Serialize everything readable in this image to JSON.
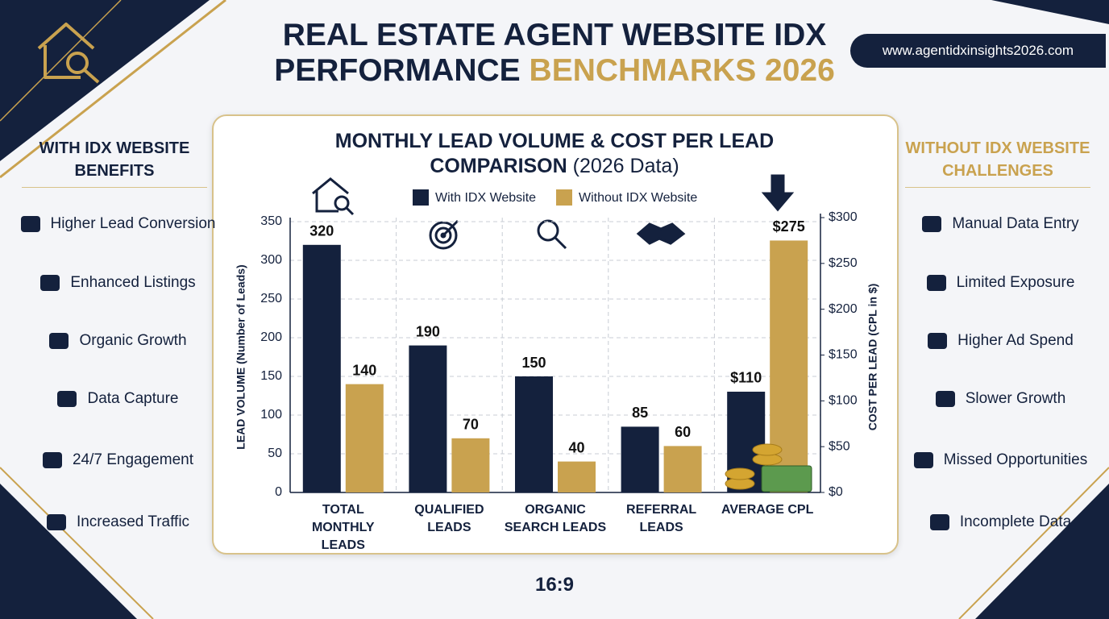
{
  "header": {
    "title_main": "REAL ESTATE AGENT WEBSITE IDX PERFORMANCE",
    "title_accent": "BENCHMARKS 2026",
    "website": "www.agentidxinsights2026.com"
  },
  "left_panel": {
    "title": "WITH IDX WEBSITE BENEFITS",
    "items": [
      "Higher Lead Conversion",
      "Enhanced Listings",
      "Organic Growth",
      "Data Capture",
      "24/7 Engagement",
      "Increased Traffic"
    ]
  },
  "right_panel": {
    "title": "WITHOUT IDX WEBSITE CHALLENGES",
    "items": [
      "Manual Data Entry",
      "Limited Exposure",
      "Higher Ad Spend",
      "Slower Growth",
      "Missed Opportunities",
      "Incomplete Data"
    ]
  },
  "chart_data": {
    "type": "bar",
    "title": "MONTHLY LEAD VOLUME & COST PER LEAD COMPARISON",
    "title_note": "(2026 Data)",
    "y_label": "LEAD VOLUME (Number of Leads)",
    "y2_label": "COST PER LEAD (CPL in $)",
    "categories": [
      "TOTAL MONTHLY LEADS",
      "QUALIFIED LEADS",
      "ORGANIC SEARCH LEADS",
      "REFERRAL LEADS",
      "AVERAGE CPL"
    ],
    "series": [
      {
        "name": "With IDX Website",
        "color": "#14213d",
        "values": [
          320,
          190,
          150,
          85,
          null
        ]
      },
      {
        "name": "Without IDX Website",
        "color": "#c9a24f",
        "values": [
          140,
          70,
          40,
          60,
          null
        ]
      },
      {
        "color": "#14213d",
        "axis": "y2",
        "values": [
          null,
          null,
          null,
          null,
          110
        ],
        "value_labels": [
          null,
          null,
          null,
          null,
          "$110"
        ]
      },
      {
        "color": "#c9a24f",
        "axis": "y2",
        "values": [
          null,
          null,
          null,
          null,
          275
        ],
        "value_labels": [
          null,
          null,
          null,
          null,
          "$275"
        ]
      }
    ],
    "ylim": [
      0,
      350
    ],
    "yticks": [
      0,
      50,
      100,
      150,
      200,
      250,
      300,
      350
    ],
    "y2lim": [
      0,
      300
    ],
    "y2ticks": [
      {
        "value": 0,
        "label": "$0"
      },
      {
        "value": 50,
        "label": "$50"
      },
      {
        "value": 100,
        "label": "$100"
      },
      {
        "value": 150,
        "label": "$150"
      },
      {
        "value": 200,
        "label": "$200"
      },
      {
        "value": 250,
        "label": "$250"
      },
      {
        "value": 300,
        "label": "$300"
      }
    ],
    "grid": true,
    "legend": "top"
  },
  "footer": {
    "aspect": "16:9"
  }
}
